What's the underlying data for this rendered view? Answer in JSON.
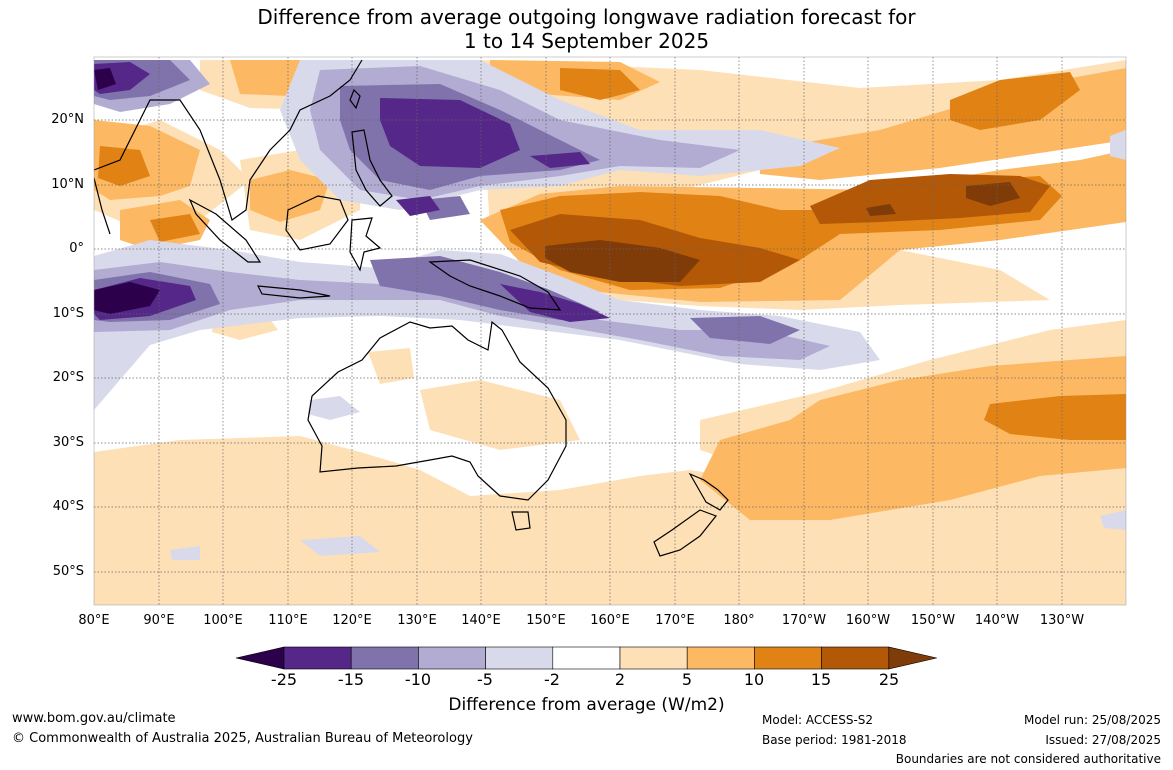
{
  "title_line1": "Difference from average outgoing longwave radiation forecast for",
  "title_line2": "1 to 14 September 2025",
  "lat_labels": [
    "20°N",
    "10°N",
    "0°",
    "10°S",
    "20°S",
    "30°S",
    "40°S",
    "50°S"
  ],
  "lon_labels": [
    "80°E",
    "90°E",
    "100°E",
    "110°E",
    "120°E",
    "130°E",
    "140°E",
    "150°E",
    "160°E",
    "170°E",
    "180°",
    "170°W",
    "160°W",
    "150°W",
    "140°W",
    "130°W"
  ],
  "colorbar": {
    "colors": [
      "#2d004b",
      "#542788",
      "#8073ac",
      "#b2abd2",
      "#d8daeb",
      "#ffffff",
      "#fee0b6",
      "#fdb863",
      "#e08214",
      "#b35806",
      "#7f3b08"
    ],
    "tick_labels": [
      "-25",
      "-15",
      "-10",
      "-5",
      "-2",
      "2",
      "5",
      "10",
      "15",
      "25"
    ],
    "title": "Difference from average (W/m2)"
  },
  "footer": {
    "website": "www.bom.gov.au/climate",
    "copyright": "© Commonwealth of Australia 2025, Australian Bureau of Meteorology",
    "model": "Model: ACCESS-S2",
    "base_period": "Base period: 1981-2018",
    "model_run": "Model run: 25/08/2025",
    "issued": "Issued: 27/08/2025",
    "disclaimer": "Boundaries are not considered authoritative"
  }
}
